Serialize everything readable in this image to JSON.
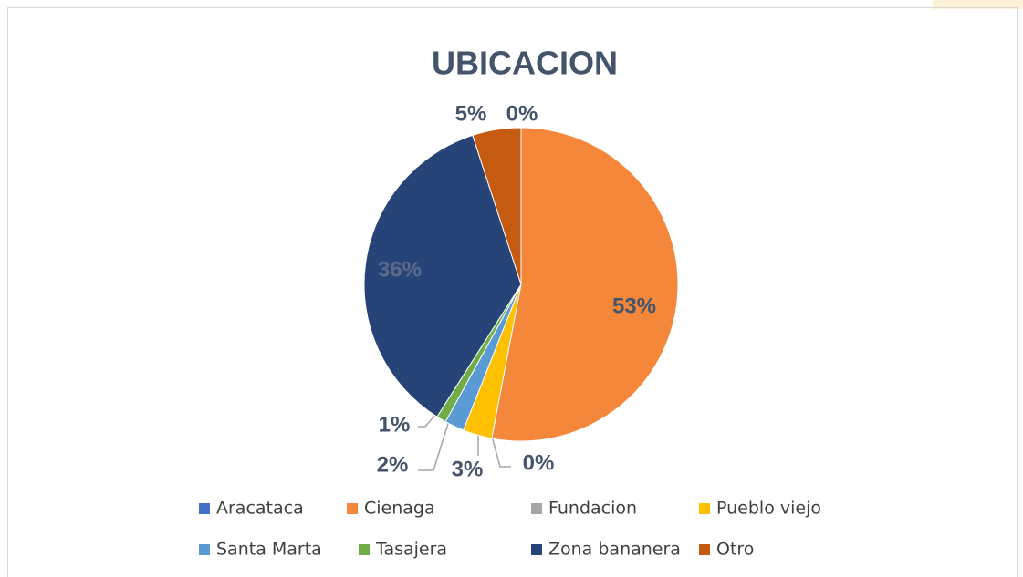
{
  "chart_data": {
    "type": "pie",
    "title": "UBICACION",
    "categories": [
      "Aracataca",
      "Cienaga",
      "Fundacion",
      "Pueblo viejo",
      "Santa Marta",
      "Tasajera",
      "Zona bananera",
      "Otro"
    ],
    "values": [
      0,
      53,
      0,
      3,
      2,
      1,
      36,
      5
    ],
    "value_labels": [
      "0%",
      "53%",
      "0%",
      "3%",
      "2%",
      "1%",
      "36%",
      "5%"
    ],
    "colors": [
      "#4472c4",
      "#f5873a",
      "#a5a5a5",
      "#ffc000",
      "#5b9bd5",
      "#70ad47",
      "#264478",
      "#c55a11"
    ],
    "legend": "bottom"
  }
}
